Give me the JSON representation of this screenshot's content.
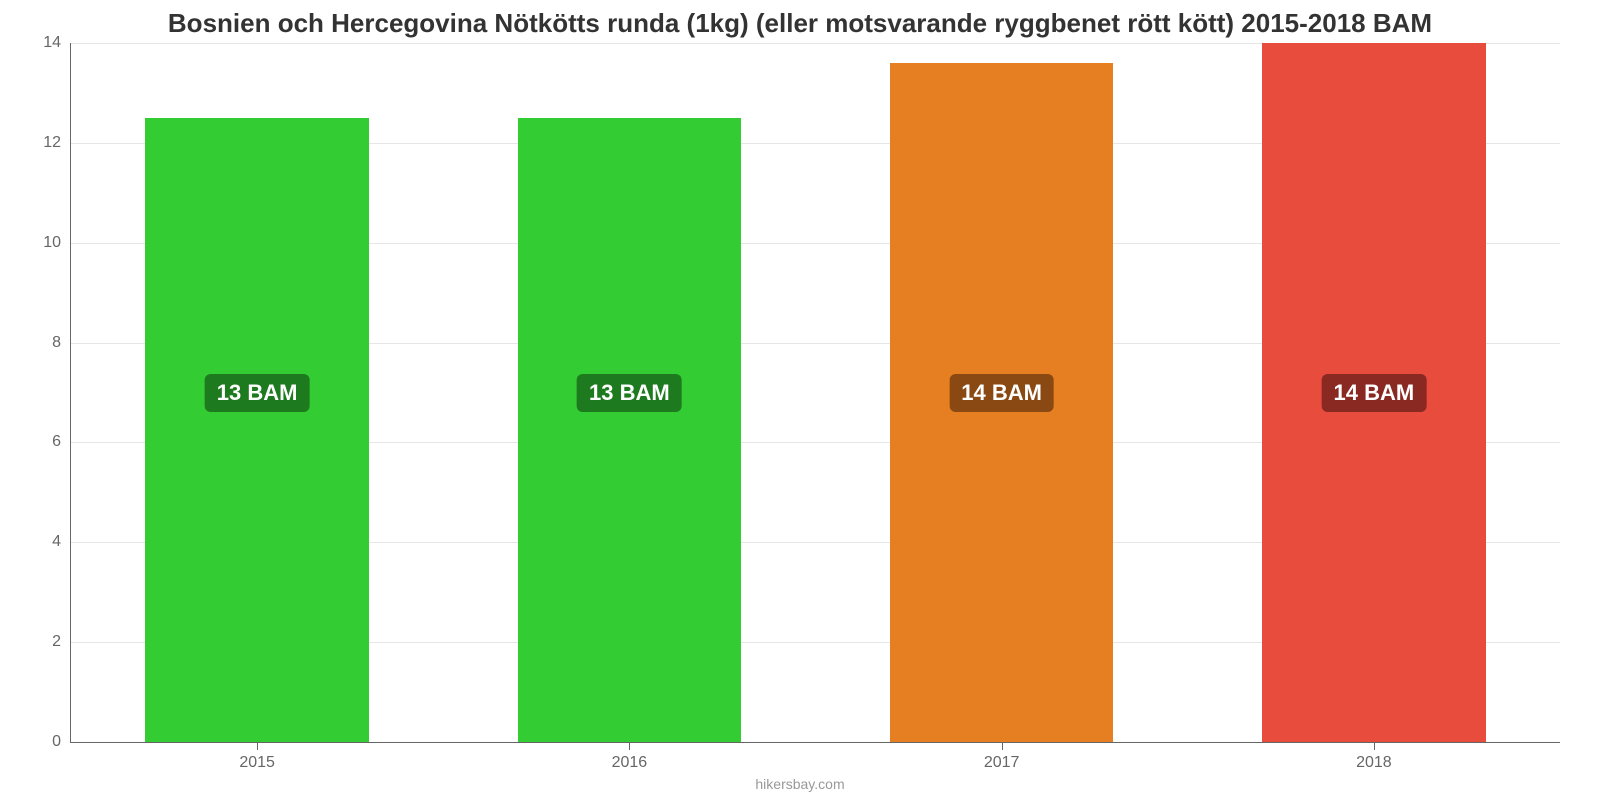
{
  "chart": {
    "type": "bar",
    "title": "Bosnien och Hercegovina Nötkötts runda (1kg) (eller motsvarande ryggbenet rött kött) 2015-2018 BAM",
    "title_fontsize": 26,
    "title_color": "#333333",
    "background_color": "#ffffff",
    "grid_color": "#e6e6e6",
    "axis_color": "#666666",
    "tick_label_color": "#666666",
    "tick_fontsize": 16,
    "ylim_min": 0,
    "ylim_max": 14,
    "ytick_step": 2,
    "yticks": [
      0,
      2,
      4,
      6,
      8,
      10,
      12,
      14
    ],
    "categories": [
      "2015",
      "2016",
      "2017",
      "2018"
    ],
    "values": [
      12.5,
      12.5,
      13.6,
      14.0
    ],
    "bar_labels": [
      "13 BAM",
      "13 BAM",
      "14 BAM",
      "14 BAM"
    ],
    "bar_colors": [
      "#33cc33",
      "#33cc33",
      "#e67e22",
      "#e74c3c"
    ],
    "bar_label_bg": [
      "#1e7a1e",
      "#1e7a1e",
      "#8a4912",
      "#8a2822"
    ],
    "bar_label_color": "#ffffff",
    "bar_label_fontsize": 22,
    "bar_width_pct": 60,
    "bar_positions_pct": [
      12.5,
      37.5,
      62.5,
      87.5
    ],
    "bar_label_y_value": 7,
    "attribution": "hikersbay.com",
    "attribution_color": "#999999",
    "attribution_fontsize": 14
  }
}
